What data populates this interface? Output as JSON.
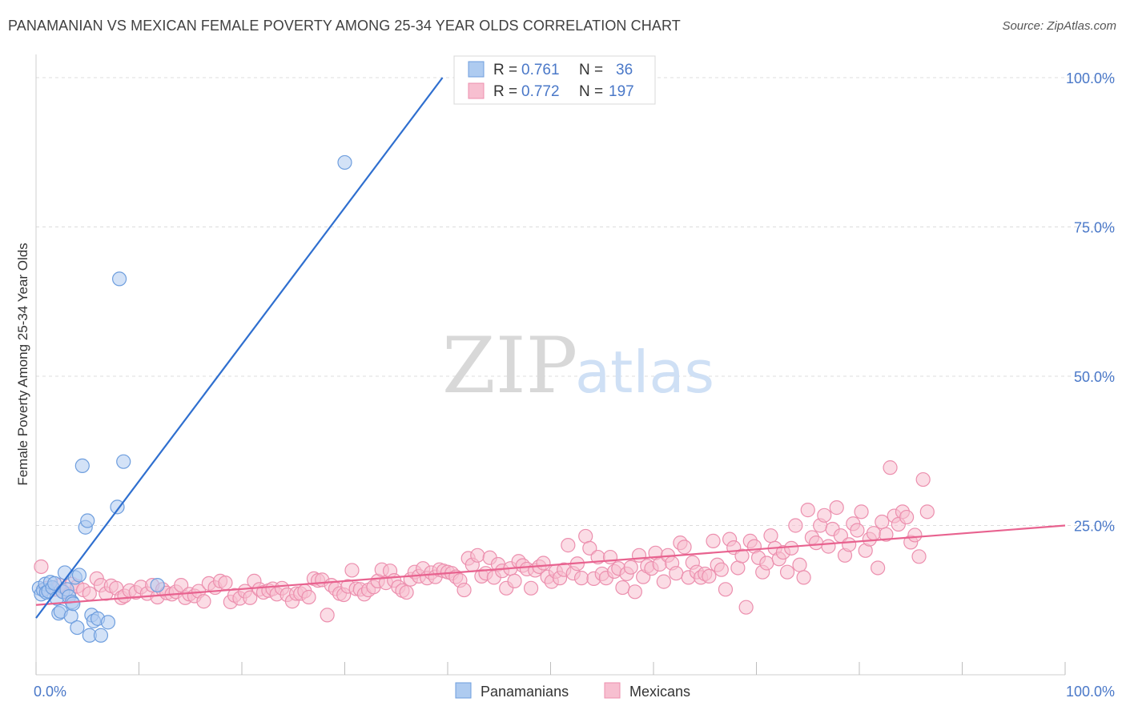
{
  "title": "PANAMANIAN VS MEXICAN FEMALE POVERTY AMONG 25-34 YEAR OLDS CORRELATION CHART",
  "source": "Source: ZipAtlas.com",
  "watermark": {
    "part1": "ZIP",
    "part2": "atlas"
  },
  "colors": {
    "blue_fill": "#aecbf0",
    "blue_stroke": "#6e9ede",
    "blue_line": "#2f6fcf",
    "pink_fill": "#f7bfd0",
    "pink_stroke": "#ec8fae",
    "pink_line": "#e8628f",
    "label_blue": "#4a78c8",
    "grid": "#dcdcdc"
  },
  "legend_top": {
    "rows": [
      {
        "r_label": "R =",
        "r_value": "0.761",
        "n_label": "N =",
        "n_value": "36"
      },
      {
        "r_label": "R =",
        "r_value": "0.772",
        "n_label": "N =",
        "n_value": "197"
      }
    ]
  },
  "chart_data": {
    "type": "scatter",
    "title": "PANAMANIAN VS MEXICAN FEMALE POVERTY AMONG 25-34 YEAR OLDS CORRELATION CHART",
    "xlabel": "",
    "ylabel": "Female Poverty Among 25-34 Year Olds",
    "xlim": [
      0,
      100
    ],
    "ylim": [
      0,
      100
    ],
    "x_tick_labels": [
      "0.0%",
      "100.0%"
    ],
    "y_ticks": [
      25,
      50,
      75,
      100
    ],
    "y_tick_labels": [
      "25.0%",
      "50.0%",
      "75.0%",
      "100.0%"
    ],
    "grid": true,
    "legend_placement": "top-center and bottom",
    "series": [
      {
        "name": "Panamanians",
        "r": 0.761,
        "n": 36,
        "trendline": {
          "x": [
            0,
            39.5
          ],
          "y": [
            9.5,
            100
          ]
        },
        "points": [
          [
            0.3,
            14.5
          ],
          [
            0.5,
            13.5
          ],
          [
            0.7,
            14.2
          ],
          [
            0.9,
            15.2
          ],
          [
            1.0,
            13.8
          ],
          [
            1.2,
            14.0
          ],
          [
            1.4,
            15.5
          ],
          [
            1.6,
            14.6
          ],
          [
            1.8,
            15.3
          ],
          [
            2.0,
            12.8
          ],
          [
            2.2,
            10.3
          ],
          [
            2.4,
            10.6
          ],
          [
            2.6,
            13.9
          ],
          [
            2.8,
            17.1
          ],
          [
            3.0,
            14.3
          ],
          [
            3.2,
            13.1
          ],
          [
            3.4,
            9.8
          ],
          [
            3.5,
            12.2
          ],
          [
            3.6,
            11.9
          ],
          [
            3.8,
            16.3
          ],
          [
            4.0,
            7.9
          ],
          [
            4.2,
            16.7
          ],
          [
            4.5,
            35.0
          ],
          [
            4.8,
            24.7
          ],
          [
            5.0,
            25.8
          ],
          [
            5.2,
            6.6
          ],
          [
            5.4,
            10.0
          ],
          [
            5.6,
            9.0
          ],
          [
            6.0,
            9.4
          ],
          [
            6.3,
            6.6
          ],
          [
            7.0,
            8.8
          ],
          [
            7.9,
            28.1
          ],
          [
            8.1,
            66.3
          ],
          [
            8.5,
            35.7
          ],
          [
            11.8,
            15.0
          ],
          [
            30.0,
            85.8
          ]
        ]
      },
      {
        "name": "Mexicans",
        "r": 0.772,
        "n": 197,
        "trendline": {
          "x": [
            0,
            100
          ],
          "y": [
            11.7,
            25.0
          ]
        },
        "points": [
          [
            0.5,
            18.1
          ],
          [
            1.0,
            14.5
          ],
          [
            1.8,
            14.3
          ],
          [
            2.3,
            15.0
          ],
          [
            2.6,
            14.0
          ],
          [
            3.2,
            13.5
          ],
          [
            3.5,
            15.2
          ],
          [
            4.0,
            14.8
          ],
          [
            4.6,
            14.2
          ],
          [
            5.2,
            13.6
          ],
          [
            5.9,
            16.1
          ],
          [
            6.3,
            15.0
          ],
          [
            6.8,
            13.6
          ],
          [
            7.3,
            14.9
          ],
          [
            7.8,
            14.5
          ],
          [
            8.3,
            12.9
          ],
          [
            8.6,
            13.2
          ],
          [
            9.1,
            14.1
          ],
          [
            9.7,
            13.8
          ],
          [
            10.2,
            14.7
          ],
          [
            10.8,
            13.6
          ],
          [
            11.3,
            15.0
          ],
          [
            11.8,
            13.0
          ],
          [
            12.3,
            14.3
          ],
          [
            12.7,
            13.7
          ],
          [
            13.2,
            13.5
          ],
          [
            13.6,
            13.9
          ],
          [
            14.1,
            15.0
          ],
          [
            14.5,
            12.9
          ],
          [
            14.9,
            13.5
          ],
          [
            15.4,
            13.2
          ],
          [
            15.8,
            14.0
          ],
          [
            16.3,
            12.3
          ],
          [
            16.8,
            15.3
          ],
          [
            17.4,
            14.6
          ],
          [
            17.9,
            15.7
          ],
          [
            18.4,
            15.4
          ],
          [
            18.9,
            12.2
          ],
          [
            19.3,
            13.3
          ],
          [
            19.8,
            12.8
          ],
          [
            20.3,
            14.0
          ],
          [
            20.8,
            12.9
          ],
          [
            21.2,
            15.7
          ],
          [
            21.7,
            14.3
          ],
          [
            22.1,
            13.8
          ],
          [
            22.6,
            14.1
          ],
          [
            23.0,
            14.4
          ],
          [
            23.4,
            13.5
          ],
          [
            23.9,
            14.5
          ],
          [
            24.4,
            13.4
          ],
          [
            24.9,
            12.3
          ],
          [
            25.3,
            13.6
          ],
          [
            25.7,
            13.6
          ],
          [
            26.1,
            14.0
          ],
          [
            26.5,
            13.0
          ],
          [
            27.0,
            16.1
          ],
          [
            27.4,
            15.8
          ],
          [
            27.8,
            15.9
          ],
          [
            28.3,
            10.0
          ],
          [
            28.7,
            15.0
          ],
          [
            29.1,
            14.4
          ],
          [
            29.5,
            13.6
          ],
          [
            29.9,
            13.4
          ],
          [
            30.3,
            14.8
          ],
          [
            30.7,
            17.5
          ],
          [
            31.1,
            14.4
          ],
          [
            31.5,
            14.3
          ],
          [
            31.9,
            13.5
          ],
          [
            32.3,
            14.2
          ],
          [
            32.8,
            14.7
          ],
          [
            33.2,
            15.7
          ],
          [
            33.6,
            17.6
          ],
          [
            34.0,
            15.4
          ],
          [
            34.4,
            17.4
          ],
          [
            34.8,
            15.8
          ],
          [
            35.2,
            14.7
          ],
          [
            35.6,
            14.1
          ],
          [
            36.0,
            13.8
          ],
          [
            36.4,
            16.0
          ],
          [
            36.8,
            17.2
          ],
          [
            37.2,
            16.5
          ],
          [
            37.6,
            17.8
          ],
          [
            38.0,
            16.2
          ],
          [
            38.4,
            17.1
          ],
          [
            38.8,
            16.4
          ],
          [
            39.2,
            17.6
          ],
          [
            39.6,
            17.4
          ],
          [
            40.0,
            17.2
          ],
          [
            40.4,
            17.0
          ],
          [
            40.8,
            16.4
          ],
          [
            41.2,
            15.8
          ],
          [
            41.6,
            14.2
          ],
          [
            42.0,
            19.5
          ],
          [
            42.4,
            18.4
          ],
          [
            42.9,
            20.0
          ],
          [
            43.3,
            16.5
          ],
          [
            43.7,
            17.0
          ],
          [
            44.1,
            19.6
          ],
          [
            44.5,
            16.3
          ],
          [
            44.9,
            18.5
          ],
          [
            45.3,
            17.4
          ],
          [
            45.7,
            14.5
          ],
          [
            46.1,
            17.8
          ],
          [
            46.5,
            15.7
          ],
          [
            46.9,
            19.0
          ],
          [
            47.3,
            18.3
          ],
          [
            47.7,
            17.7
          ],
          [
            48.1,
            14.5
          ],
          [
            48.5,
            17.5
          ],
          [
            48.9,
            18.1
          ],
          [
            49.3,
            18.7
          ],
          [
            49.7,
            16.4
          ],
          [
            50.1,
            15.6
          ],
          [
            50.5,
            17.3
          ],
          [
            50.9,
            16.2
          ],
          [
            51.3,
            17.6
          ],
          [
            51.7,
            21.7
          ],
          [
            52.2,
            17.0
          ],
          [
            52.6,
            18.6
          ],
          [
            53.0,
            16.2
          ],
          [
            53.4,
            23.2
          ],
          [
            53.8,
            21.2
          ],
          [
            54.2,
            16.1
          ],
          [
            54.6,
            19.7
          ],
          [
            55.0,
            16.9
          ],
          [
            55.4,
            16.2
          ],
          [
            55.8,
            19.7
          ],
          [
            56.2,
            17.3
          ],
          [
            56.6,
            17.8
          ],
          [
            57.0,
            14.6
          ],
          [
            57.4,
            16.9
          ],
          [
            57.8,
            18.0
          ],
          [
            58.2,
            13.9
          ],
          [
            58.6,
            20.0
          ],
          [
            59.0,
            16.4
          ],
          [
            59.4,
            18.2
          ],
          [
            59.8,
            17.8
          ],
          [
            60.2,
            20.4
          ],
          [
            60.6,
            18.5
          ],
          [
            61.0,
            15.6
          ],
          [
            61.4,
            20.0
          ],
          [
            61.8,
            18.7
          ],
          [
            62.2,
            17.0
          ],
          [
            62.6,
            22.1
          ],
          [
            63.0,
            21.4
          ],
          [
            63.4,
            16.3
          ],
          [
            63.8,
            18.8
          ],
          [
            64.2,
            17.2
          ],
          [
            64.6,
            16.3
          ],
          [
            65.0,
            16.9
          ],
          [
            65.4,
            16.5
          ],
          [
            65.8,
            22.4
          ],
          [
            66.2,
            18.4
          ],
          [
            66.6,
            17.6
          ],
          [
            67.0,
            14.3
          ],
          [
            67.4,
            22.7
          ],
          [
            67.8,
            21.3
          ],
          [
            68.2,
            17.9
          ],
          [
            68.6,
            19.9
          ],
          [
            69.0,
            11.3
          ],
          [
            69.4,
            22.4
          ],
          [
            69.8,
            21.5
          ],
          [
            70.2,
            19.6
          ],
          [
            70.6,
            17.2
          ],
          [
            71.0,
            18.7
          ],
          [
            71.4,
            23.3
          ],
          [
            71.8,
            21.2
          ],
          [
            72.2,
            19.4
          ],
          [
            72.6,
            20.5
          ],
          [
            73.0,
            17.2
          ],
          [
            73.4,
            21.2
          ],
          [
            73.8,
            25.0
          ],
          [
            74.2,
            18.4
          ],
          [
            74.6,
            16.3
          ],
          [
            75.0,
            27.6
          ],
          [
            75.4,
            23.0
          ],
          [
            75.8,
            22.1
          ],
          [
            76.2,
            25.0
          ],
          [
            76.6,
            26.7
          ],
          [
            77.0,
            21.5
          ],
          [
            77.4,
            24.4
          ],
          [
            77.8,
            28.0
          ],
          [
            78.2,
            23.3
          ],
          [
            78.6,
            20.0
          ],
          [
            79.0,
            21.8
          ],
          [
            79.4,
            25.3
          ],
          [
            79.8,
            24.2
          ],
          [
            80.2,
            27.3
          ],
          [
            80.6,
            20.8
          ],
          [
            81.0,
            22.7
          ],
          [
            81.4,
            23.7
          ],
          [
            81.8,
            17.9
          ],
          [
            82.2,
            25.6
          ],
          [
            82.6,
            23.5
          ],
          [
            83.0,
            34.7
          ],
          [
            83.4,
            26.6
          ],
          [
            83.8,
            25.2
          ],
          [
            84.2,
            27.3
          ],
          [
            84.6,
            26.4
          ],
          [
            85.0,
            22.2
          ],
          [
            85.4,
            23.4
          ],
          [
            85.8,
            19.8
          ],
          [
            86.2,
            32.7
          ],
          [
            86.6,
            27.3
          ]
        ]
      }
    ]
  },
  "legend_bottom": {
    "items": [
      "Panamanians",
      "Mexicans"
    ]
  }
}
